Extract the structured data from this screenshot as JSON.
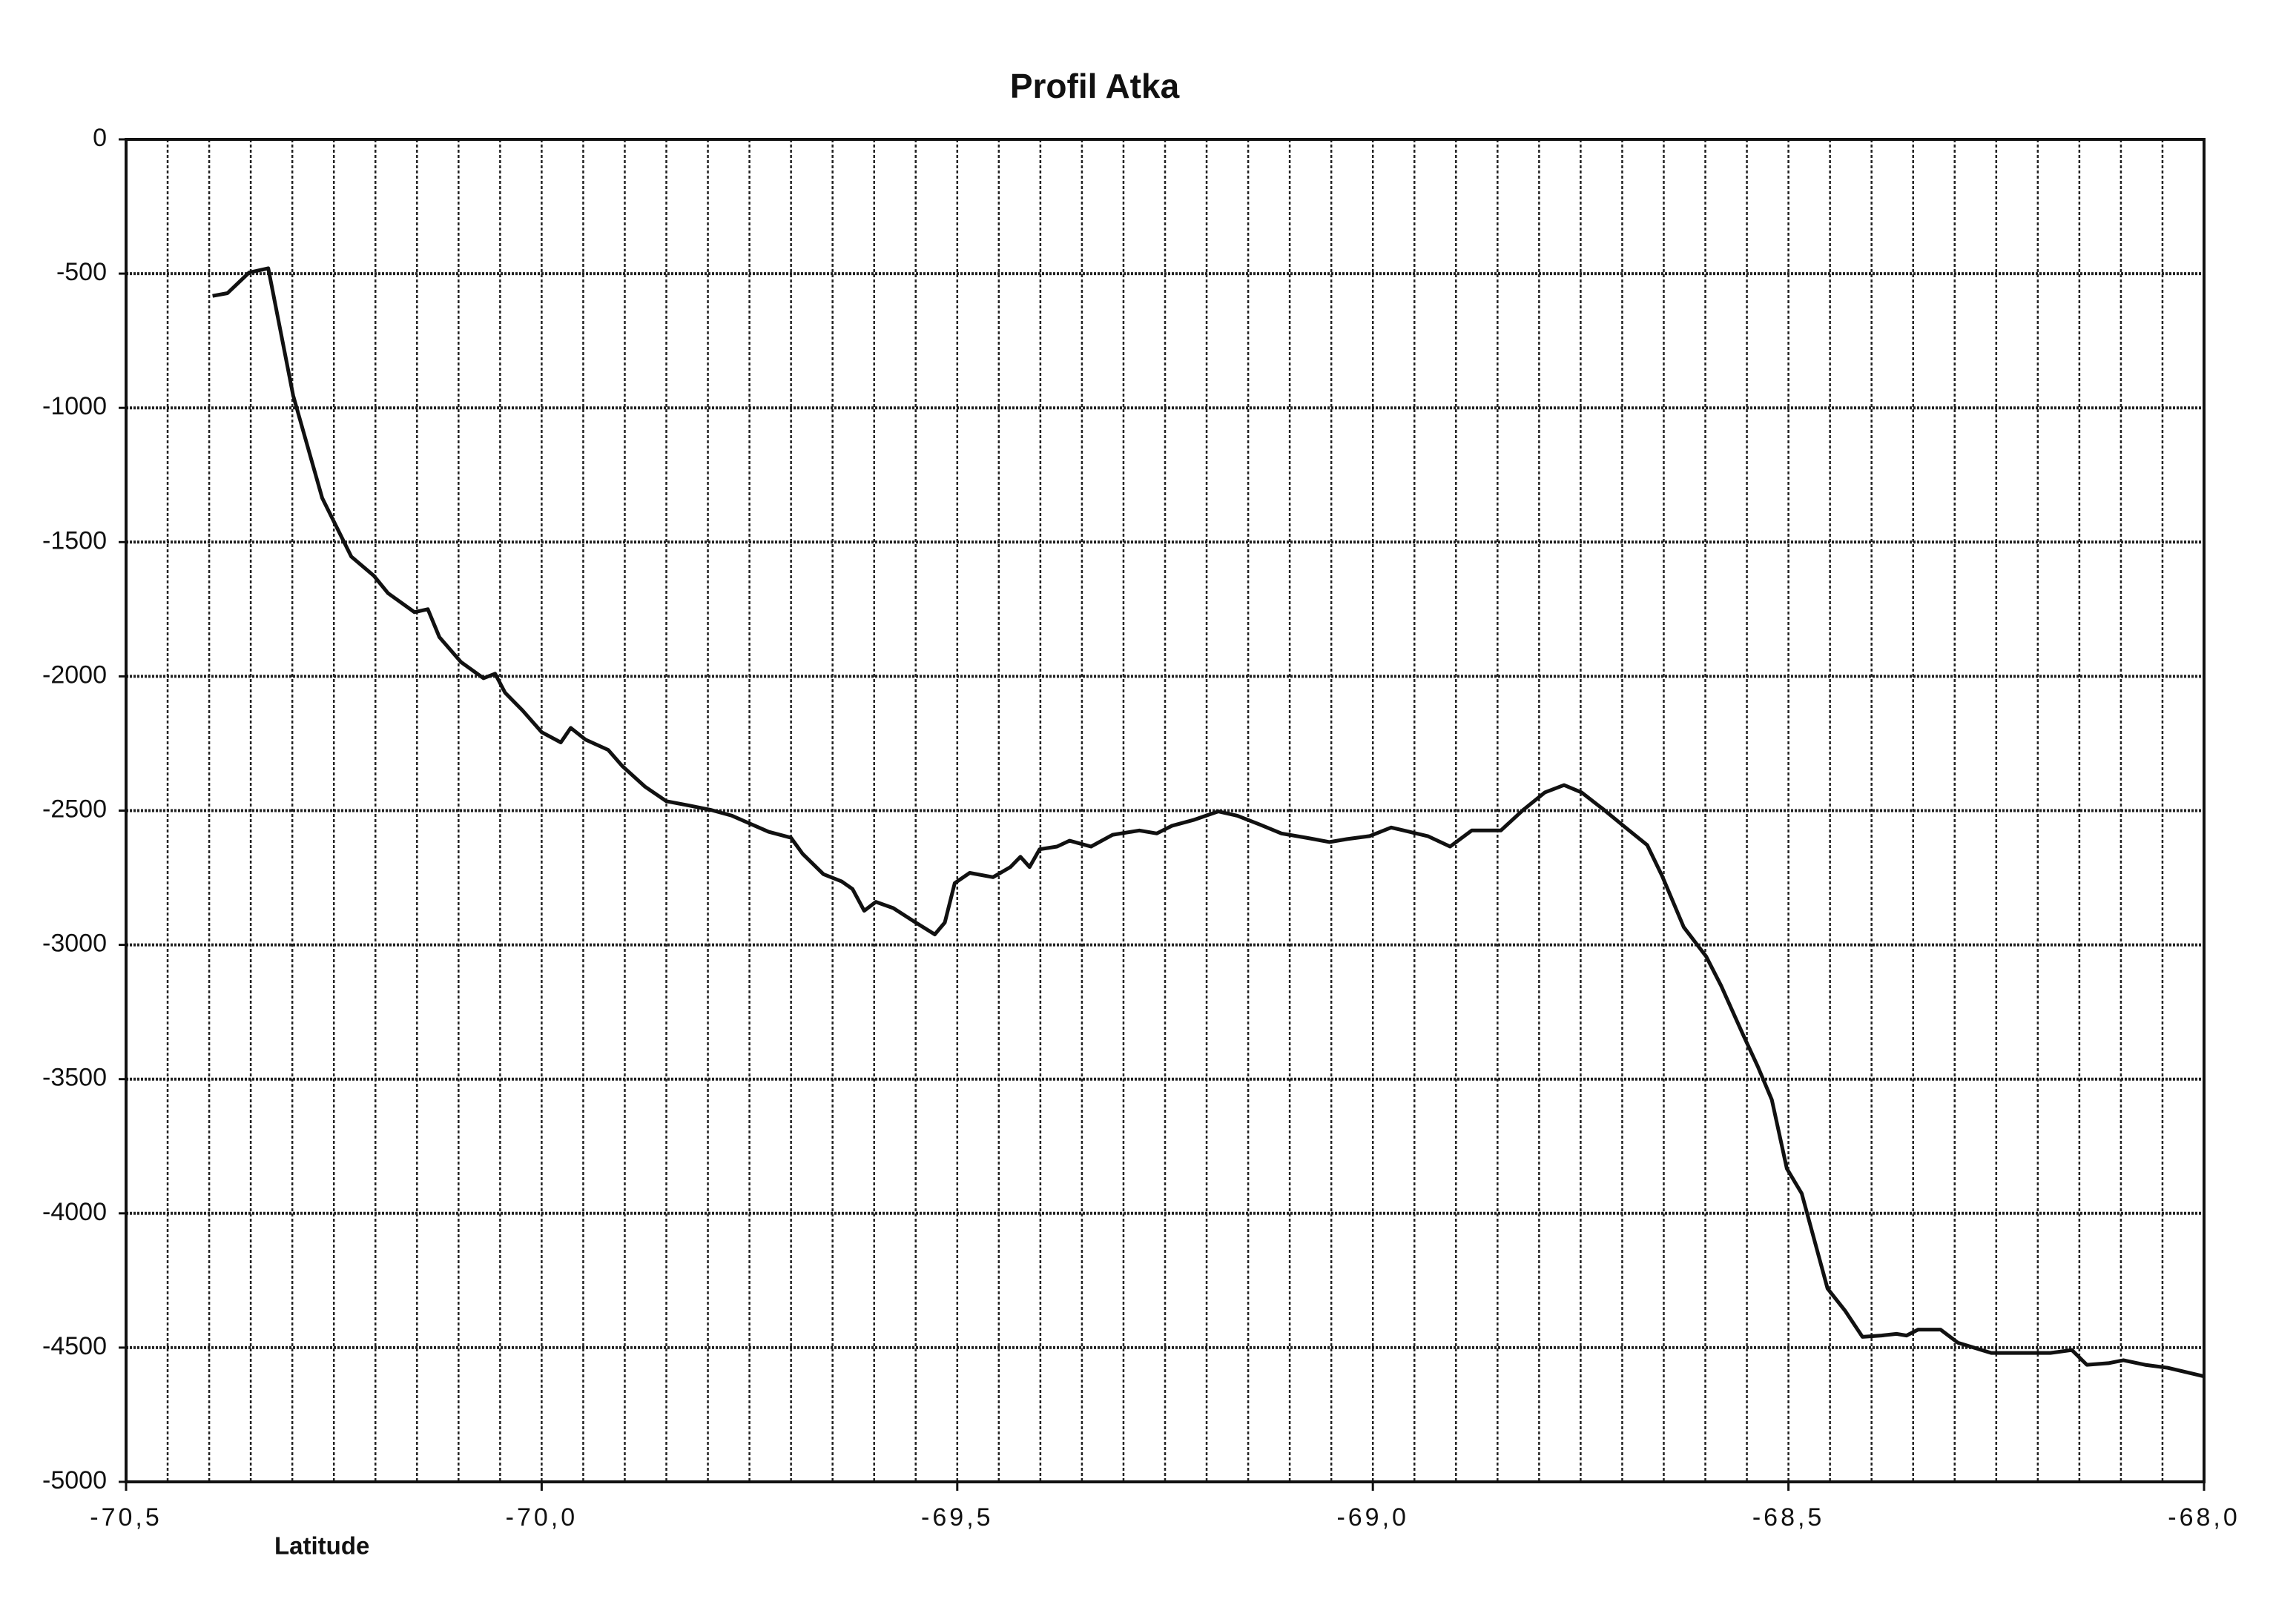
{
  "chart_data": {
    "type": "line",
    "title": "Profil Atka",
    "x_label": "Latitude",
    "xlim": [
      -70.5,
      -68.0
    ],
    "ylim": [
      -5000,
      0
    ],
    "xticks": [
      {
        "value": -70.5,
        "label": "-70,5"
      },
      {
        "value": -70.0,
        "label": "-70,0"
      },
      {
        "value": -69.5,
        "label": "-69,5"
      },
      {
        "value": -69.0,
        "label": "-69,0"
      },
      {
        "value": -68.5,
        "label": "-68,5"
      },
      {
        "value": -68.0,
        "label": "-68,0"
      }
    ],
    "x_minor_ticks": [
      -70.5,
      -70.45,
      -70.4,
      -70.35,
      -70.3,
      -70.25,
      -70.2,
      -70.15,
      -70.1,
      -70.05,
      -70.0,
      -69.95,
      -69.9,
      -69.85,
      -69.8,
      -69.75,
      -69.7,
      -69.65,
      -69.6,
      -69.55,
      -69.5,
      -69.45,
      -69.4,
      -69.35,
      -69.3,
      -69.25,
      -69.2,
      -69.15,
      -69.1,
      -69.05,
      -69.0,
      -68.95,
      -68.9,
      -68.85,
      -68.8,
      -68.75,
      -68.7,
      -68.65,
      -68.6,
      -68.55,
      -68.5,
      -68.45,
      -68.4,
      -68.35,
      -68.3,
      -68.25,
      -68.2,
      -68.15,
      -68.1,
      -68.05,
      -68.0
    ],
    "yticks": [
      0,
      -500,
      -1000,
      -1500,
      -2000,
      -2500,
      -3000,
      -3500,
      -4000,
      -4500,
      -5000
    ],
    "grid": true,
    "color": "#111111",
    "x": [
      -70.396,
      -70.378,
      -70.352,
      -70.329,
      -70.299,
      -70.264,
      -70.229,
      -70.202,
      -70.185,
      -70.153,
      -70.137,
      -70.123,
      -70.097,
      -70.07,
      -70.056,
      -70.044,
      -70.023,
      -70.0,
      -69.977,
      -69.965,
      -69.947,
      -69.92,
      -69.903,
      -69.876,
      -69.85,
      -69.823,
      -69.797,
      -69.771,
      -69.727,
      -69.7,
      -69.686,
      -69.661,
      -69.639,
      -69.626,
      -69.612,
      -69.598,
      -69.577,
      -69.55,
      -69.527,
      -69.515,
      -69.503,
      -69.485,
      -69.457,
      -69.436,
      -69.424,
      -69.413,
      -69.401,
      -69.38,
      -69.365,
      -69.339,
      -69.313,
      -69.281,
      -69.26,
      -69.242,
      -69.216,
      -69.186,
      -69.163,
      -69.136,
      -69.11,
      -69.08,
      -69.052,
      -69.031,
      -69.004,
      -68.978,
      -68.956,
      -68.934,
      -68.907,
      -68.881,
      -68.846,
      -68.819,
      -68.793,
      -68.77,
      -68.749,
      -68.722,
      -68.696,
      -68.67,
      -68.652,
      -68.626,
      -68.599,
      -68.581,
      -68.555,
      -68.537,
      -68.52,
      -68.502,
      -68.484,
      -68.453,
      -68.432,
      -68.411,
      -68.388,
      -68.37,
      -68.358,
      -68.344,
      -68.317,
      -68.296,
      -68.256,
      -68.185,
      -68.159,
      -68.141,
      -68.115,
      -68.097,
      -68.071,
      -68.044,
      -68.0
    ],
    "values": [
      -583,
      -573,
      -496,
      -480,
      -954,
      -1336,
      -1554,
      -1625,
      -1690,
      -1761,
      -1750,
      -1854,
      -1947,
      -2007,
      -1990,
      -2061,
      -2127,
      -2208,
      -2246,
      -2192,
      -2236,
      -2274,
      -2334,
      -2410,
      -2465,
      -2481,
      -2497,
      -2519,
      -2579,
      -2601,
      -2661,
      -2737,
      -2764,
      -2792,
      -2873,
      -2840,
      -2863,
      -2917,
      -2961,
      -2917,
      -2770,
      -2732,
      -2748,
      -2710,
      -2672,
      -2710,
      -2644,
      -2634,
      -2612,
      -2634,
      -2590,
      -2574,
      -2585,
      -2557,
      -2535,
      -2503,
      -2519,
      -2552,
      -2585,
      -2601,
      -2617,
      -2606,
      -2595,
      -2563,
      -2579,
      -2595,
      -2634,
      -2574,
      -2574,
      -2497,
      -2432,
      -2405,
      -2432,
      -2497,
      -2563,
      -2628,
      -2743,
      -2934,
      -3043,
      -3152,
      -3332,
      -3452,
      -3577,
      -3833,
      -3926,
      -4280,
      -4362,
      -4460,
      -4455,
      -4449,
      -4455,
      -4433,
      -4433,
      -4482,
      -4520,
      -4520,
      -4509,
      -4564,
      -4558,
      -4547,
      -4564,
      -4575,
      -4607
    ]
  }
}
